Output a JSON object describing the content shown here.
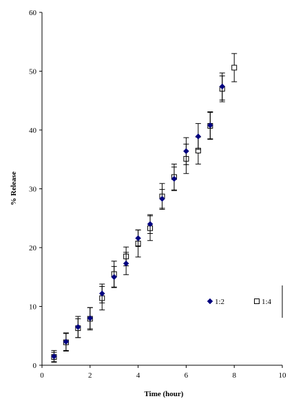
{
  "chart_data": {
    "type": "scatter",
    "title": "",
    "xlabel": "Time (hour)",
    "ylabel": "% Release",
    "xlim": [
      0,
      10
    ],
    "ylim": [
      0,
      60
    ],
    "x_ticks": [
      0,
      2,
      4,
      6,
      8,
      10
    ],
    "y_ticks": [
      0,
      10,
      20,
      30,
      40,
      50,
      60
    ],
    "grid": false,
    "legend_position": "right",
    "series": [
      {
        "name": "1:2",
        "marker": "diamond-filled",
        "color": "#00007f",
        "points": [
          {
            "x": 0.5,
            "y": 1.5,
            "err": 1.0
          },
          {
            "x": 1.0,
            "y": 4.0,
            "err": 1.5
          },
          {
            "x": 1.5,
            "y": 6.5,
            "err": 1.8
          },
          {
            "x": 2.0,
            "y": 8.0,
            "err": 1.8
          },
          {
            "x": 2.5,
            "y": 12.2,
            "err": 1.6
          },
          {
            "x": 3.0,
            "y": 15.0,
            "err": 1.8
          },
          {
            "x": 3.5,
            "y": 17.3,
            "err": 1.9
          },
          {
            "x": 4.0,
            "y": 21.6,
            "err": 1.4
          },
          {
            "x": 4.5,
            "y": 24.0,
            "err": 1.6
          },
          {
            "x": 5.0,
            "y": 28.3,
            "err": 1.6
          },
          {
            "x": 5.5,
            "y": 31.7,
            "err": 2.0
          },
          {
            "x": 6.0,
            "y": 36.4,
            "err": 2.3
          },
          {
            "x": 6.5,
            "y": 38.9,
            "err": 2.2
          },
          {
            "x": 7.0,
            "y": 40.8,
            "err": 2.3
          },
          {
            "x": 7.5,
            "y": 47.4,
            "err": 2.3
          }
        ]
      },
      {
        "name": "1:4",
        "marker": "square-open",
        "color": "#000000",
        "points": [
          {
            "x": 0.5,
            "y": 1.4,
            "err": 0.8
          },
          {
            "x": 1.0,
            "y": 3.9,
            "err": 1.5
          },
          {
            "x": 1.5,
            "y": 6.3,
            "err": 1.6
          },
          {
            "x": 2.0,
            "y": 7.9,
            "err": 1.9
          },
          {
            "x": 2.5,
            "y": 11.4,
            "err": 2.0
          },
          {
            "x": 3.0,
            "y": 15.5,
            "err": 2.2
          },
          {
            "x": 3.5,
            "y": 18.5,
            "err": 1.6
          },
          {
            "x": 4.0,
            "y": 20.7,
            "err": 2.3
          },
          {
            "x": 4.5,
            "y": 23.3,
            "err": 2.1
          },
          {
            "x": 5.0,
            "y": 28.7,
            "err": 2.2
          },
          {
            "x": 5.5,
            "y": 32.0,
            "err": 2.2
          },
          {
            "x": 6.0,
            "y": 35.1,
            "err": 2.5
          },
          {
            "x": 6.5,
            "y": 36.5,
            "err": 2.3
          },
          {
            "x": 7.0,
            "y": 40.7,
            "err": 2.3
          },
          {
            "x": 7.5,
            "y": 47.0,
            "err": 2.2
          },
          {
            "x": 8.0,
            "y": 50.6,
            "err": 2.4
          }
        ]
      }
    ]
  }
}
